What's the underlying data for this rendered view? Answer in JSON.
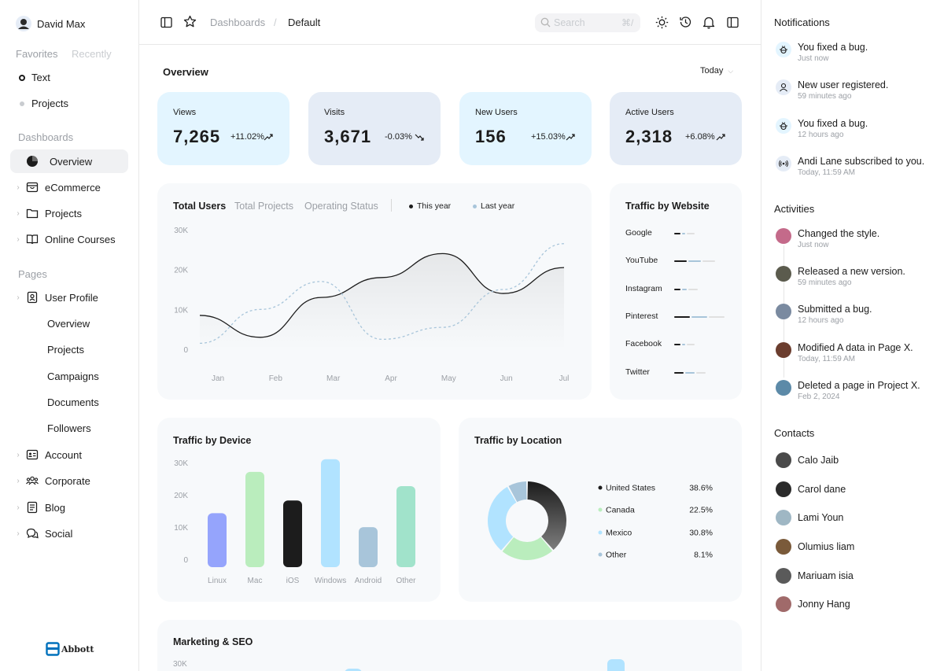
{
  "user": {
    "name": "David Max"
  },
  "sidebar": {
    "tabs": [
      "Favorites",
      "Recently"
    ],
    "favorites": [
      "Text",
      "Projects"
    ],
    "dashboards_heading": "Dashboards",
    "dashboards": [
      "Overview",
      "eCommerce",
      "Projects",
      "Online Courses"
    ],
    "pages_heading": "Pages",
    "user_profile": "User Profile",
    "user_profile_sub": [
      "Overview",
      "Projects",
      "Campaigns",
      "Documents",
      "Followers"
    ],
    "pages": [
      "Account",
      "Corporate",
      "Blog",
      "Social"
    ],
    "brand": "Abbott"
  },
  "topbar": {
    "breadcrumb_parent": "Dashboards",
    "breadcrumb_sep": "/",
    "breadcrumb_current": "Default",
    "search_placeholder": "Search",
    "search_shortcut": "⌘/"
  },
  "overview": {
    "title": "Overview",
    "range": "Today",
    "stats": [
      {
        "label": "Views",
        "value": "7,265",
        "change": "+11.02%",
        "bg": "#e3f5ff"
      },
      {
        "label": "Visits",
        "value": "3,671",
        "change": "-0.03%",
        "bg": "#e5ecf6"
      },
      {
        "label": "New Users",
        "value": "156",
        "change": "+15.03%",
        "bg": "#e3f5ff"
      },
      {
        "label": "Active Users",
        "value": "2,318",
        "change": "+6.08%",
        "bg": "#e5ecf6"
      }
    ]
  },
  "users_chart": {
    "tabs": [
      "Total Users",
      "Total Projects",
      "Operating Status"
    ],
    "legend": [
      "This year",
      "Last year"
    ]
  },
  "traffic_website": {
    "title": "Traffic by Website",
    "sites": [
      "Google",
      "YouTube",
      "Instagram",
      "Pinterest",
      "Facebook",
      "Twitter"
    ]
  },
  "traffic_device": {
    "title": "Traffic by Device"
  },
  "traffic_location": {
    "title": "Traffic by Location"
  },
  "marketing": {
    "title": "Marketing & SEO",
    "ytick": "30K"
  },
  "chart_data": [
    {
      "type": "line",
      "x": [
        "Jan",
        "Feb",
        "Mar",
        "Apr",
        "May",
        "Jun",
        "Jul"
      ],
      "yticks": [
        "0",
        "10K",
        "20K",
        "30K"
      ],
      "ylim": [
        0,
        30000
      ],
      "series": [
        {
          "name": "This year",
          "values": [
            8500,
            3000,
            13000,
            18000,
            24000,
            14000,
            20500
          ]
        },
        {
          "name": "Last year",
          "values": [
            1500,
            10000,
            17000,
            2500,
            5500,
            15000,
            26500
          ]
        }
      ]
    },
    {
      "type": "bar",
      "categories": [
        "Linux",
        "Mac",
        "iOS",
        "Windows",
        "Android",
        "Other"
      ],
      "values": [
        17000,
        30000,
        21000,
        34000,
        12600,
        25500
      ],
      "colors": [
        "#95a4fc",
        "#baedbd",
        "#1c1c1c",
        "#b1e3ff",
        "#a8c5da",
        "#a1e3cb"
      ],
      "yticks": [
        "0",
        "10K",
        "20K",
        "30K"
      ],
      "ylim": [
        0,
        30000
      ]
    },
    {
      "type": "pie",
      "labels": [
        "United States",
        "Canada",
        "Mexico",
        "Other"
      ],
      "values": [
        38.6,
        22.5,
        30.8,
        8.1
      ],
      "display": [
        "38.6%",
        "22.5%",
        "30.8%",
        "8.1%"
      ],
      "colors": [
        "#1c1c1c",
        "#baedbd",
        "#b1e3ff",
        "#a8c5da"
      ]
    }
  ],
  "notifications": {
    "title": "Notifications",
    "items": [
      {
        "text": "You fixed a bug.",
        "time": "Just now",
        "icon": "bug-icon"
      },
      {
        "text": "New user registered.",
        "time": "59 minutes ago",
        "icon": "user-icon"
      },
      {
        "text": "You fixed a bug.",
        "time": "12 hours ago",
        "icon": "bug-icon"
      },
      {
        "text": "Andi Lane subscribed to you.",
        "time": "Today, 11:59 AM",
        "icon": "broadcast-icon"
      }
    ]
  },
  "activities": {
    "title": "Activities",
    "items": [
      {
        "text": "Changed the style.",
        "time": "Just now",
        "color": "#c46a8a"
      },
      {
        "text": "Released a new version.",
        "time": "59 minutes ago",
        "color": "#5b5b4d"
      },
      {
        "text": "Submitted a bug.",
        "time": "12 hours ago",
        "color": "#7a8aa0"
      },
      {
        "text": "Modified A data in Page X.",
        "time": "Today, 11:59 AM",
        "color": "#6b3d2e"
      },
      {
        "text": "Deleted a page in Project X.",
        "time": "Feb 2, 2024",
        "color": "#5c8aa8"
      }
    ]
  },
  "contacts": {
    "title": "Contacts",
    "items": [
      {
        "name": "Calo Jaib",
        "color": "#4a4a4a"
      },
      {
        "name": "Carol dane",
        "color": "#2b2b2b"
      },
      {
        "name": "Lami Youn",
        "color": "#9fb7c4"
      },
      {
        "name": "Olumius liam",
        "color": "#7a5a3a"
      },
      {
        "name": "Mariuam isia",
        "color": "#5a5a5a"
      },
      {
        "name": "Jonny Hang",
        "color": "#a06a6a"
      }
    ]
  }
}
